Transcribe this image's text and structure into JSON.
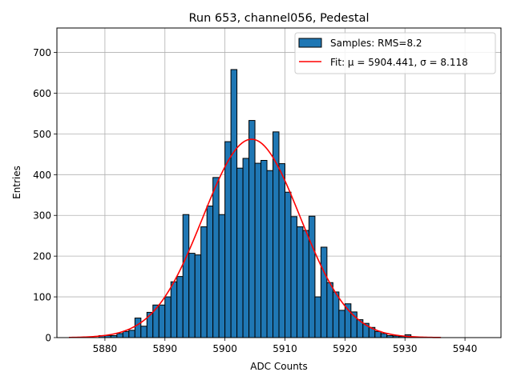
{
  "chart_data": {
    "type": "bar",
    "title": "Run 653, channel056, Pedestal",
    "xlabel": "ADC Counts",
    "ylabel": "Entries",
    "xlim": [
      5872,
      5946
    ],
    "ylim": [
      0,
      760
    ],
    "xticks": [
      5880,
      5890,
      5900,
      5910,
      5920,
      5930,
      5940
    ],
    "yticks": [
      0,
      100,
      200,
      300,
      400,
      500,
      600,
      700
    ],
    "grid": true,
    "legend_position": "top-right",
    "histogram": {
      "name": "Samples: RMS=8.2",
      "color": "#1f77b4",
      "edgecolor": "#000000",
      "bin_width": 1,
      "bin_starts": [
        5879,
        5880,
        5881,
        5882,
        5883,
        5884,
        5885,
        5886,
        5887,
        5888,
        5889,
        5890,
        5891,
        5892,
        5893,
        5894,
        5895,
        5896,
        5897,
        5898,
        5899,
        5900,
        5901,
        5902,
        5903,
        5904,
        5905,
        5906,
        5907,
        5908,
        5909,
        5910,
        5911,
        5912,
        5913,
        5914,
        5915,
        5916,
        5917,
        5918,
        5919,
        5920,
        5921,
        5922,
        5923,
        5924,
        5925,
        5926,
        5927,
        5928,
        5929,
        5930
      ],
      "counts": [
        5,
        5,
        5,
        10,
        15,
        18,
        48,
        28,
        62,
        80,
        80,
        100,
        137,
        150,
        302,
        207,
        203,
        272,
        323,
        393,
        302,
        481,
        658,
        416,
        440,
        533,
        428,
        435,
        410,
        505,
        427,
        357,
        297,
        272,
        263,
        298,
        100,
        222,
        135,
        112,
        67,
        83,
        63,
        44,
        35,
        25,
        15,
        10,
        5,
        4,
        3,
        7
      ]
    },
    "fit": {
      "name": "Fit: μ = 5904.441, σ = 8.118",
      "color": "#ff0000",
      "mu": 5904.441,
      "sigma": 8.118,
      "amplitude": 487,
      "x_range": [
        5874,
        5936
      ]
    }
  }
}
